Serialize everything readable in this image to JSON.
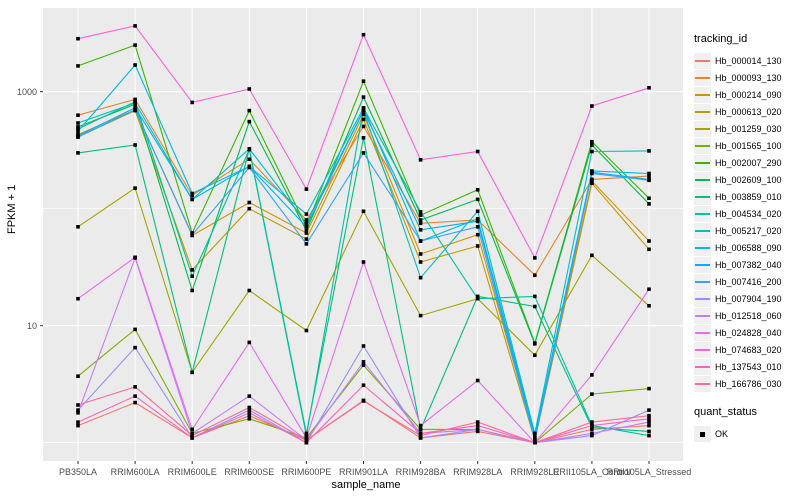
{
  "legend": {
    "tracking_title": "tracking_id",
    "quant_title": "quant_status",
    "quant_items": [
      {
        "label": "OK",
        "shape": "square",
        "color": "#000000"
      }
    ]
  },
  "axes": {
    "x_title": "sample_name",
    "y_title": "FPKM + 1"
  },
  "chart_data": {
    "type": "line",
    "x_categories": [
      "PB350LA",
      "RRIM600LA",
      "RRIM600LE",
      "RRIM600SE",
      "RRIM600PE",
      "RRIM901LA",
      "RRIM928BA",
      "RRIM928LA",
      "RRIM928LE",
      "RRII105LA_Control",
      "RRII105LA_Stressed"
    ],
    "xlabel": "sample_name",
    "ylabel": "FPKM + 1",
    "y_scale": "log10",
    "y_ticks": [
      {
        "label": "1000",
        "value": 1000
      },
      {
        "label": "10",
        "value": 10
      }
    ],
    "y_minor_breaks": [
      1,
      100
    ],
    "ylim_fpkm_plus_1": [
      0.8,
      5000
    ],
    "grid": true,
    "panel_bg": "#ebebeb",
    "grid_color": "#ffffff",
    "point_shape": "square",
    "point_color": "#000000",
    "legend_position": "right",
    "series": [
      {
        "name": "Hb_000014_130",
        "color": "#F8766D",
        "values": [
          1.4,
          2.2,
          1.1,
          1.7,
          1.05,
          2.3,
          1.1,
          1.25,
          1.0,
          1.3,
          1.4
        ]
      },
      {
        "name": "Hb_000093_130",
        "color": "#EA8331",
        "values": [
          630,
          860,
          130,
          265,
          80,
          505,
          75,
          80,
          27,
          178,
          190
        ]
      },
      {
        "name": "Hb_000214_090",
        "color": "#D89000",
        "values": [
          430,
          700,
          59,
          113,
          62,
          640,
          41,
          60,
          1.1,
          172,
          53
        ]
      },
      {
        "name": "Hb_000613_020",
        "color": "#C09B00",
        "values": [
          410,
          690,
          30,
          100,
          55,
          580,
          35,
          48,
          1.05,
          165,
          45
        ]
      },
      {
        "name": "Hb_001259_030",
        "color": "#A3A500",
        "values": [
          70,
          150,
          4.0,
          20,
          9.1,
          95,
          12.2,
          17,
          5.6,
          40,
          14.8
        ]
      },
      {
        "name": "Hb_001565_100",
        "color": "#7CAE00",
        "values": [
          3.7,
          9.3,
          1.2,
          1.6,
          1.1,
          4.6,
          1.3,
          1.3,
          1.0,
          2.6,
          2.9
        ]
      },
      {
        "name": "Hb_002007_290",
        "color": "#39B600",
        "values": [
          1660,
          2500,
          62,
          690,
          70,
          1230,
          88,
          145,
          7.1,
          374,
          123
        ]
      },
      {
        "name": "Hb_002609_100",
        "color": "#00BB4E",
        "values": [
          500,
          780,
          20,
          555,
          65,
          900,
          80,
          120,
          7.0,
          350,
          110
        ]
      },
      {
        "name": "Hb_003859_010",
        "color": "#00BF7D",
        "values": [
          300,
          350,
          4.0,
          325,
          1.2,
          404,
          1.3,
          17.8,
          14.6,
          1.35,
          1.25
        ]
      },
      {
        "name": "Hb_004534_020",
        "color": "#00C1A3",
        "values": [
          480,
          820,
          26.5,
          320,
          1.15,
          725,
          94,
          17,
          17.8,
          1.4,
          1.15
        ]
      },
      {
        "name": "Hb_005217_020",
        "color": "#00BFC4",
        "values": [
          540,
          800,
          120,
          325,
          75,
          690,
          25.7,
          95,
          1.2,
          308,
          312
        ]
      },
      {
        "name": "Hb_006588_090",
        "color": "#00BAE0",
        "values": [
          460,
          1690,
          135,
          230,
          90,
          725,
          53,
          82,
          1.15,
          210,
          200
        ]
      },
      {
        "name": "Hb_007382_040",
        "color": "#00B0F6",
        "values": [
          419,
          730,
          120,
          230,
          70,
          690,
          66,
          78,
          1.1,
          205,
          178
        ]
      },
      {
        "name": "Hb_007416_200",
        "color": "#35A2FF",
        "values": [
          410,
          700,
          60,
          225,
          50,
          300,
          53,
          70,
          1.05,
          200,
          175
        ]
      },
      {
        "name": "Hb_007904_190",
        "color": "#9590FF",
        "values": [
          1.9,
          6.5,
          1.1,
          1.9,
          1.0,
          6.7,
          1.1,
          1.3,
          1.0,
          1.15,
          1.9
        ]
      },
      {
        "name": "Hb_012518_060",
        "color": "#C77CFF",
        "values": [
          1.8,
          38,
          1.2,
          2.5,
          1.05,
          4.9,
          1.2,
          1.3,
          1.0,
          1.2,
          1.5
        ]
      },
      {
        "name": "Hb_024828_040",
        "color": "#E76BF3",
        "values": [
          17,
          38.4,
          1.3,
          7.2,
          1.1,
          35,
          1.4,
          3.4,
          1.0,
          3.8,
          20.5
        ]
      },
      {
        "name": "Hb_074683_020",
        "color": "#FA62DB",
        "values": [
          2840,
          3650,
          810,
          1055,
          147,
          3070,
          262,
          308,
          38,
          755,
          1080
        ]
      },
      {
        "name": "Hb_137543_010",
        "color": "#FF62BC",
        "values": [
          1.5,
          2.5,
          1.1,
          1.8,
          1.0,
          3.1,
          1.2,
          1.4,
          1.0,
          1.4,
          1.6
        ]
      },
      {
        "name": "Hb_166786_030",
        "color": "#FF6A98",
        "values": [
          2.1,
          3.0,
          1.15,
          2.0,
          1.05,
          2.27,
          1.15,
          1.5,
          1.0,
          1.5,
          1.7
        ]
      }
    ]
  }
}
